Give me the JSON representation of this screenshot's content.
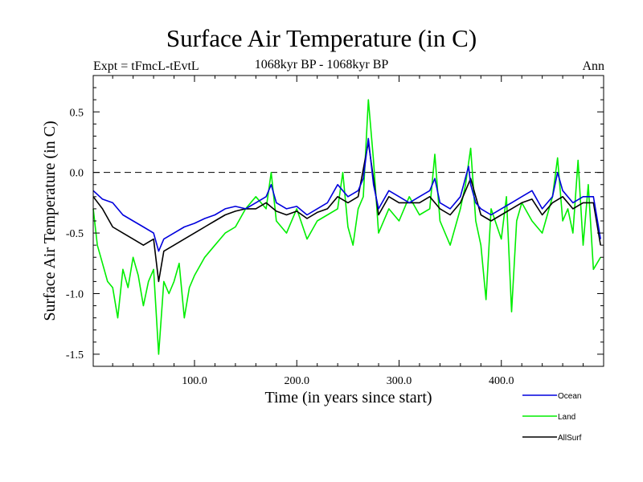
{
  "header": {
    "title": "Surface Air Temperature (in C)",
    "experiment": "Expt = tFmcL-tEvtL",
    "subtitle": "1068kyr BP - 1068kyr BP",
    "period": "Ann"
  },
  "colors": {
    "ocean": "#0000dd",
    "land": "#00ee00",
    "allsurf": "#000000",
    "zero_line": "#000000"
  },
  "chart_data": {
    "type": "line",
    "title": "Surface Air Temperature (in C)",
    "xlabel": "Time (in years since start)",
    "ylabel": "Surface Air Temperature (in C)",
    "xlim": [
      1,
      500
    ],
    "ylim": [
      -1.6,
      0.8
    ],
    "xticks": [
      100,
      200,
      300,
      400
    ],
    "xtick_labels": [
      "100.0",
      "200.0",
      "300.0",
      "400.0"
    ],
    "yticks": [
      -1.5,
      -1.0,
      -0.5,
      0.0,
      0.5
    ],
    "ytick_labels": [
      "-1.5",
      "-1.0",
      "-0.5",
      "0.0",
      "0.5"
    ],
    "reference_line": 0.0,
    "legend_position": "bottom-right",
    "series": [
      {
        "name": "Ocean",
        "color": "#0000dd",
        "x": [
          1,
          10,
          20,
          30,
          40,
          50,
          60,
          65,
          70,
          80,
          90,
          100,
          110,
          120,
          130,
          140,
          150,
          160,
          170,
          175,
          180,
          190,
          200,
          210,
          220,
          230,
          240,
          250,
          260,
          265,
          270,
          275,
          280,
          290,
          300,
          310,
          320,
          330,
          335,
          340,
          350,
          360,
          368,
          370,
          375,
          380,
          390,
          400,
          410,
          420,
          430,
          440,
          450,
          455,
          460,
          470,
          480,
          490,
          497
        ],
        "values": [
          -0.15,
          -0.22,
          -0.25,
          -0.35,
          -0.4,
          -0.45,
          -0.5,
          -0.65,
          -0.55,
          -0.5,
          -0.45,
          -0.42,
          -0.38,
          -0.35,
          -0.3,
          -0.28,
          -0.3,
          -0.25,
          -0.2,
          -0.1,
          -0.25,
          -0.3,
          -0.28,
          -0.35,
          -0.3,
          -0.25,
          -0.1,
          -0.2,
          -0.15,
          -0.05,
          0.28,
          -0.1,
          -0.3,
          -0.15,
          -0.2,
          -0.25,
          -0.2,
          -0.15,
          -0.05,
          -0.25,
          -0.3,
          -0.2,
          0.05,
          -0.1,
          -0.25,
          -0.3,
          -0.35,
          -0.3,
          -0.25,
          -0.2,
          -0.15,
          -0.3,
          -0.2,
          0.0,
          -0.15,
          -0.25,
          -0.2,
          -0.2,
          -0.55
        ]
      },
      {
        "name": "Land",
        "color": "#00ee00",
        "x": [
          1,
          5,
          10,
          15,
          20,
          25,
          30,
          35,
          40,
          45,
          50,
          55,
          60,
          65,
          70,
          75,
          80,
          85,
          90,
          95,
          100,
          110,
          120,
          130,
          140,
          150,
          160,
          170,
          175,
          180,
          190,
          200,
          210,
          220,
          230,
          240,
          245,
          250,
          255,
          260,
          265,
          270,
          275,
          280,
          290,
          300,
          310,
          320,
          330,
          335,
          340,
          350,
          360,
          365,
          370,
          375,
          380,
          385,
          390,
          400,
          405,
          410,
          415,
          420,
          430,
          440,
          450,
          455,
          460,
          465,
          470,
          475,
          480,
          485,
          490,
          497
        ],
        "values": [
          -0.3,
          -0.6,
          -0.75,
          -0.9,
          -0.95,
          -1.2,
          -0.8,
          -0.95,
          -0.7,
          -0.85,
          -1.1,
          -0.9,
          -0.8,
          -1.5,
          -0.9,
          -1.0,
          -0.9,
          -0.75,
          -1.2,
          -0.95,
          -0.85,
          -0.7,
          -0.6,
          -0.5,
          -0.45,
          -0.3,
          -0.2,
          -0.3,
          0.0,
          -0.4,
          -0.5,
          -0.3,
          -0.55,
          -0.4,
          -0.35,
          -0.3,
          0.0,
          -0.45,
          -0.6,
          -0.3,
          -0.2,
          0.6,
          0.1,
          -0.5,
          -0.3,
          -0.4,
          -0.2,
          -0.35,
          -0.3,
          0.15,
          -0.4,
          -0.6,
          -0.3,
          -0.1,
          0.2,
          -0.4,
          -0.6,
          -1.05,
          -0.3,
          -0.55,
          -0.2,
          -1.15,
          -0.4,
          -0.25,
          -0.4,
          -0.5,
          -0.2,
          0.12,
          -0.4,
          -0.3,
          -0.5,
          0.1,
          -0.6,
          -0.1,
          -0.8,
          -0.7
        ]
      },
      {
        "name": "AllSurf",
        "color": "#000000",
        "x": [
          1,
          10,
          20,
          30,
          40,
          50,
          60,
          65,
          70,
          80,
          90,
          100,
          110,
          120,
          130,
          140,
          150,
          160,
          170,
          180,
          190,
          200,
          210,
          220,
          230,
          240,
          250,
          260,
          270,
          280,
          290,
          300,
          310,
          320,
          330,
          340,
          350,
          360,
          370,
          380,
          390,
          400,
          410,
          420,
          430,
          440,
          450,
          460,
          470,
          480,
          490,
          497
        ],
        "values": [
          -0.2,
          -0.3,
          -0.45,
          -0.5,
          -0.55,
          -0.6,
          -0.55,
          -0.9,
          -0.65,
          -0.6,
          -0.55,
          -0.5,
          -0.45,
          -0.4,
          -0.35,
          -0.32,
          -0.3,
          -0.3,
          -0.25,
          -0.32,
          -0.35,
          -0.32,
          -0.38,
          -0.33,
          -0.3,
          -0.2,
          -0.25,
          -0.2,
          0.25,
          -0.35,
          -0.2,
          -0.25,
          -0.25,
          -0.25,
          -0.2,
          -0.3,
          -0.35,
          -0.25,
          -0.05,
          -0.35,
          -0.4,
          -0.35,
          -0.3,
          -0.25,
          -0.22,
          -0.35,
          -0.25,
          -0.2,
          -0.3,
          -0.25,
          -0.25,
          -0.6
        ]
      }
    ]
  }
}
